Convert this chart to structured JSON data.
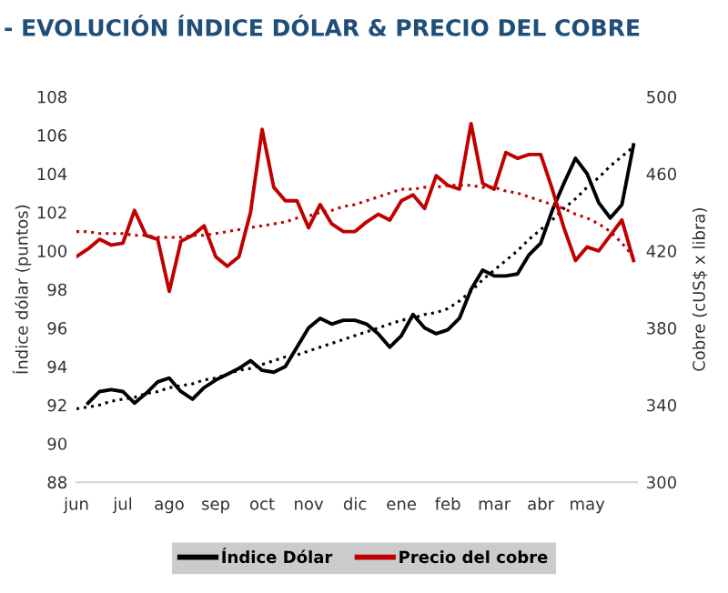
{
  "chart_data": {
    "type": "line",
    "title": "- EVOLUCIÓN ÍNDICE DÓLAR & PRECIO DEL COBRE",
    "ylabel": "Índice dólar (puntos)",
    "y2label": "Cobre (cUS$ x libra)",
    "categories": [
      "jun",
      null,
      null,
      null,
      "jul",
      null,
      null,
      null,
      "ago",
      null,
      null,
      null,
      "sep",
      null,
      null,
      null,
      "oct",
      null,
      null,
      null,
      "nov",
      null,
      null,
      null,
      "dic",
      null,
      null,
      null,
      "ene",
      null,
      null,
      null,
      "feb",
      null,
      null,
      null,
      "mar",
      null,
      null,
      null,
      "abr",
      null,
      null,
      null,
      "may",
      null,
      null,
      null,
      null
    ],
    "ylim": [
      88,
      108
    ],
    "yticks": [
      88,
      90,
      92,
      94,
      96,
      98,
      100,
      102,
      104,
      106,
      108
    ],
    "y2lim": [
      300,
      500
    ],
    "y2ticks": [
      300,
      340,
      380,
      420,
      460,
      500
    ],
    "grid": false,
    "legend": "bottom",
    "series": [
      {
        "name": "Índice Dólar",
        "color": "#000000",
        "line_style": "solid",
        "values": [
          null,
          92.1,
          92.7,
          92.8,
          92.7,
          92.1,
          92.6,
          93.2,
          93.4,
          92.7,
          92.3,
          92.9,
          93.3,
          93.6,
          93.9,
          94.3,
          93.8,
          93.7,
          94.0,
          95.0,
          96.0,
          96.5,
          96.2,
          96.4,
          96.4,
          96.2,
          95.7,
          95.0,
          95.6,
          96.7,
          96.0,
          95.7,
          95.9,
          96.5,
          98.0,
          99.0,
          98.7,
          98.7,
          98.8,
          99.8,
          100.4,
          102.1,
          103.5,
          104.8,
          104.0,
          102.5,
          101.7,
          102.4,
          105.5
        ]
      },
      {
        "name": "Precio del cobre",
        "color": "#c00000",
        "axis": "y2",
        "line_style": "solid",
        "values": [
          417,
          421,
          426,
          423,
          424,
          441,
          428,
          426,
          399,
          425,
          428,
          433,
          417,
          412,
          417,
          440,
          483,
          453,
          446,
          446,
          432,
          444,
          434,
          430,
          430,
          435,
          439,
          436,
          446,
          449,
          442,
          459,
          454,
          452,
          486,
          455,
          452,
          471,
          468,
          470,
          470,
          452,
          432,
          415,
          422,
          420,
          428,
          436,
          415
        ]
      },
      {
        "color": "#000000",
        "line_style": "dotted",
        "values": [
          91.8,
          91.9,
          92.0,
          92.2,
          92.3,
          92.4,
          92.6,
          92.7,
          92.9,
          93.0,
          93.1,
          93.3,
          93.4,
          93.6,
          93.8,
          93.9,
          94.1,
          94.3,
          94.5,
          94.6,
          94.8,
          95.0,
          95.2,
          95.4,
          95.6,
          95.8,
          96.0,
          96.2,
          96.4,
          96.5,
          96.7,
          96.8,
          97.0,
          97.4,
          97.9,
          98.5,
          99.0,
          99.5,
          100.0,
          100.6,
          101.1,
          101.6,
          102.2,
          102.7,
          103.3,
          103.8,
          104.4,
          104.9,
          105.4
        ]
      },
      {
        "color": "#c00000",
        "axis": "y2",
        "line_style": "dotted",
        "values": [
          430,
          430,
          429,
          429,
          429,
          428,
          428,
          427,
          427,
          427,
          428,
          428,
          429,
          430,
          431,
          432,
          433,
          434,
          435,
          437,
          438,
          440,
          441,
          443,
          444,
          446,
          448,
          450,
          452,
          452,
          453,
          453,
          454,
          454,
          454,
          453,
          453,
          451,
          450,
          448,
          446,
          444,
          442,
          439,
          437,
          434,
          430,
          424,
          417
        ]
      }
    ]
  }
}
